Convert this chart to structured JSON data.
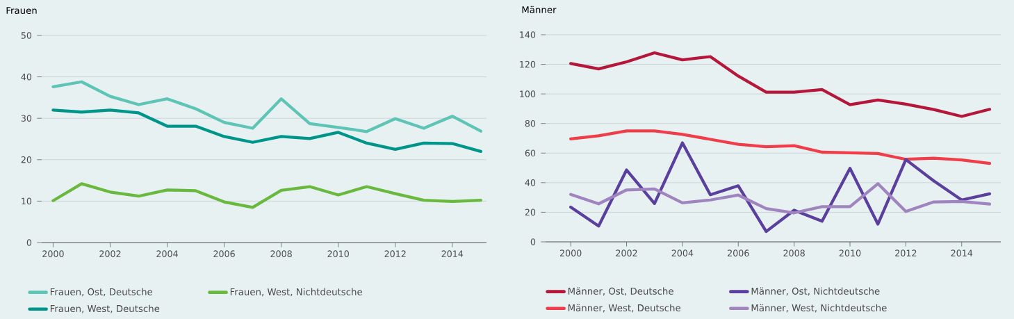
{
  "chart_data": [
    {
      "type": "line",
      "title": "Frauen",
      "x": [
        2000,
        2001,
        2002,
        2003,
        2004,
        2005,
        2006,
        2007,
        2008,
        2009,
        2010,
        2011,
        2012,
        2013,
        2014,
        2015
      ],
      "series": [
        {
          "name": "Frauen, Ost, Deutsche",
          "color": "#5ec4b6",
          "values": [
            37.6,
            38.8,
            35.3,
            33.3,
            34.7,
            32.3,
            29.0,
            27.6,
            34.7,
            28.7,
            27.8,
            26.8,
            29.9,
            27.6,
            30.5,
            26.9
          ]
        },
        {
          "name": "Frauen, West, Deutsche",
          "color": "#00958a",
          "values": [
            32.0,
            31.5,
            32.0,
            31.3,
            28.1,
            28.1,
            25.6,
            24.2,
            25.6,
            25.1,
            26.6,
            24.0,
            22.5,
            24.0,
            23.9,
            22.0
          ]
        },
        {
          "name": "Frauen, West, Nichtdeutsche",
          "color": "#6ab93f",
          "values": [
            10.1,
            14.2,
            12.2,
            11.2,
            12.7,
            12.5,
            9.8,
            8.5,
            12.6,
            13.5,
            11.5,
            13.5,
            11.8,
            10.2,
            9.9,
            10.2
          ]
        }
      ],
      "xlim": [
        1999.6,
        2015.2
      ],
      "ylim": [
        0,
        50
      ],
      "xticks": [
        2000,
        2002,
        2004,
        2006,
        2008,
        2010,
        2012,
        2014
      ],
      "yticks": [
        0,
        10,
        20,
        30,
        40,
        50
      ],
      "grid": "y",
      "legend": "bottom"
    },
    {
      "type": "line",
      "title": "Männer",
      "x": [
        2000,
        2001,
        2002,
        2003,
        2004,
        2005,
        2006,
        2007,
        2008,
        2009,
        2010,
        2011,
        2012,
        2013,
        2014,
        2015
      ],
      "series": [
        {
          "name": "Männer, Ost, Deutsche",
          "color": "#b5173a",
          "values": [
            120.6,
            116.9,
            121.7,
            127.8,
            123.0,
            125.2,
            112.1,
            101.2,
            101.2,
            102.9,
            92.7,
            95.9,
            93.1,
            89.4,
            84.8,
            89.6
          ]
        },
        {
          "name": "Männer, West, Deutsche",
          "color": "#ef3e4a",
          "values": [
            69.6,
            71.7,
            75.0,
            75.0,
            72.6,
            69.3,
            65.9,
            64.3,
            65.0,
            60.6,
            60.2,
            59.7,
            55.8,
            56.5,
            55.4,
            53.0
          ]
        },
        {
          "name": "Männer, Ost, Nichtdeutsche",
          "color": "#5a3f9d",
          "values": [
            23.5,
            10.7,
            48.6,
            25.9,
            66.9,
            31.8,
            37.9,
            7.0,
            21.4,
            14.0,
            49.7,
            12.0,
            55.6,
            41.2,
            28.3,
            32.5
          ]
        },
        {
          "name": "Männer, West, Nichtdeutsche",
          "color": "#a084c0",
          "values": [
            32.1,
            25.7,
            35.1,
            35.8,
            26.4,
            28.3,
            31.6,
            22.5,
            19.6,
            23.8,
            23.8,
            39.3,
            20.5,
            27.0,
            27.3,
            25.5
          ]
        }
      ],
      "xlim": [
        1999.1,
        2015.4
      ],
      "ylim": [
        0,
        140
      ],
      "xticks": [
        2000,
        2002,
        2004,
        2006,
        2008,
        2010,
        2012,
        2014
      ],
      "yticks": [
        0,
        20,
        40,
        60,
        80,
        100,
        120,
        140
      ],
      "grid": "y",
      "legend": "bottom"
    }
  ]
}
